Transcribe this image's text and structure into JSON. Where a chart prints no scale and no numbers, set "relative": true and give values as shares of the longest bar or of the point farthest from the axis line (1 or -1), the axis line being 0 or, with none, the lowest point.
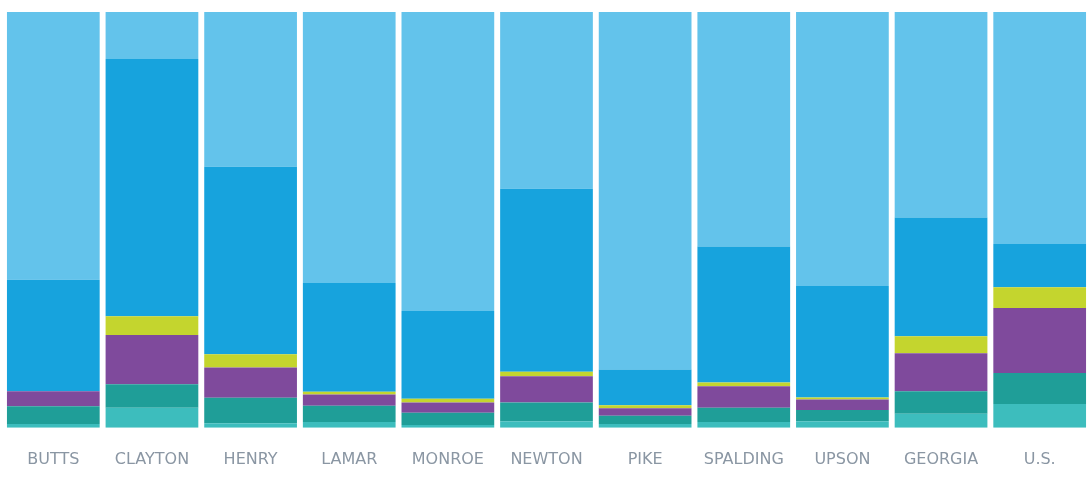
{
  "chart_data": {
    "type": "bar",
    "stacked": true,
    "relative": true,
    "legend": false,
    "grid": false,
    "categories": [
      "BUTTS",
      "CLAYTON",
      "HENRY",
      "LAMAR",
      "MONROE",
      "NEWTON",
      "PIKE",
      "SPALDING",
      "UPSON",
      "GEORGIA",
      "U.S."
    ],
    "series": [
      {
        "color": "#3dbdbd",
        "values": [
          0.009,
          0.048,
          0.011,
          0.014,
          0.007,
          0.016,
          0.009,
          0.014,
          0.016,
          0.034,
          0.057
        ]
      },
      {
        "color": "#1f9e98",
        "values": [
          0.043,
          0.057,
          0.061,
          0.039,
          0.029,
          0.045,
          0.02,
          0.034,
          0.027,
          0.054,
          0.075
        ]
      },
      {
        "color": "#7f4a9c",
        "values": [
          0.036,
          0.118,
          0.073,
          0.027,
          0.025,
          0.063,
          0.018,
          0.052,
          0.025,
          0.091,
          0.156
        ]
      },
      {
        "color": "#c4d52e",
        "values": [
          0,
          0.045,
          0.032,
          0.007,
          0.009,
          0.011,
          0.007,
          0.009,
          0.005,
          0.041,
          0.05
        ]
      },
      {
        "color": "#17a3dd",
        "values": [
          0.268,
          0.619,
          0.451,
          0.261,
          0.211,
          0.44,
          0.086,
          0.327,
          0.268,
          0.286,
          0.104
        ]
      },
      {
        "color": "#63c3eb",
        "values": [
          0.644,
          0.113,
          0.372,
          0.652,
          0.719,
          0.425,
          0.86,
          0.564,
          0.659,
          0.494,
          0.558
        ]
      }
    ]
  }
}
